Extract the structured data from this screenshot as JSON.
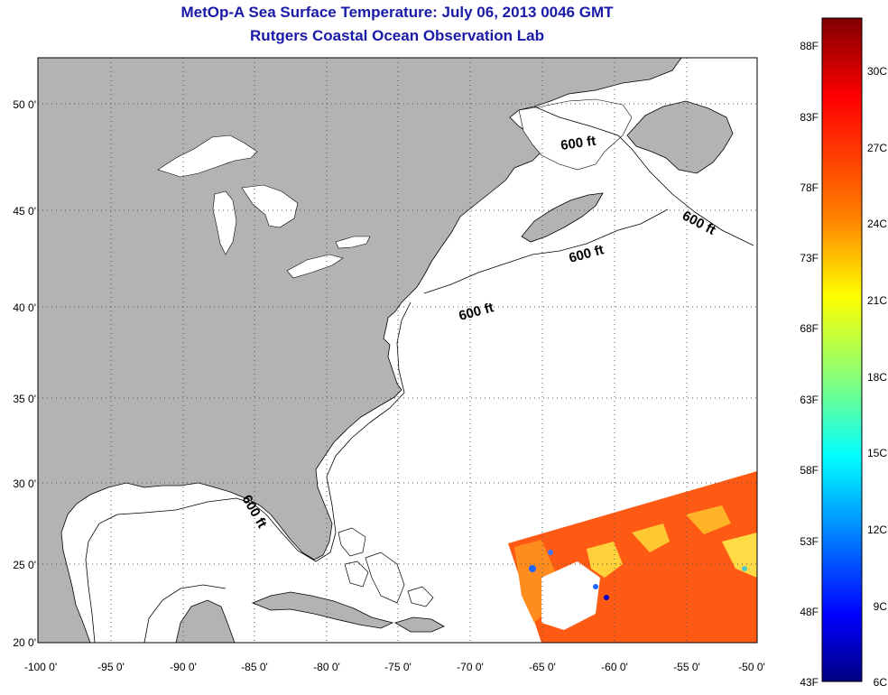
{
  "title": {
    "line1": "MetOp-A Sea Surface Temperature:  July 06, 2013 0046 GMT",
    "line2": "Rutgers Coastal Ocean Observation Lab"
  },
  "map": {
    "lat_ticks": [
      "50 0'",
      "45 0'",
      "40 0'",
      "35 0'",
      "30 0'",
      "25 0'",
      "20 0'"
    ],
    "lon_ticks": [
      "-100 0'",
      "-95 0'",
      "-90 0'",
      "-85 0'",
      "-80 0'",
      "-75 0'",
      "-70 0'",
      "-65 0'",
      "-60 0'",
      "-55 0'",
      "-50 0'"
    ],
    "contour_labels": [
      "600 ft",
      "600 ft",
      "600 ft",
      "600 ft",
      "600 ft"
    ],
    "colors": {
      "land": "#b3b3b3",
      "ocean": "#ffffff",
      "grid": "#555555",
      "title": "#1a1aa8"
    }
  },
  "colorbar": {
    "f_labels": [
      "88F",
      "83F",
      "78F",
      "73F",
      "68F",
      "63F",
      "58F",
      "53F",
      "48F",
      "43F"
    ],
    "c_labels": [
      "30C",
      "27C",
      "24C",
      "21C",
      "18C",
      "15C",
      "12C",
      "9C",
      "6C"
    ],
    "gradient_colors": [
      "#800000",
      "#ff0000",
      "#ff8000",
      "#ffff00",
      "#80ff80",
      "#00ffff",
      "#0080ff",
      "#0000ff",
      "#000080"
    ]
  }
}
